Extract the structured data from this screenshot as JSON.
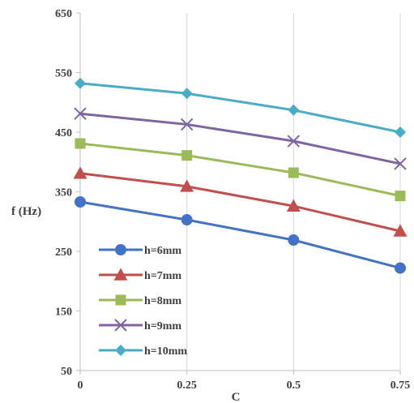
{
  "chart_data": {
    "type": "line",
    "title": "",
    "xlabel": "C",
    "ylabel": "f (Hz)",
    "x": [
      0,
      0.25,
      0.5,
      0.75
    ],
    "x_tick_labels": [
      "0",
      "0.25",
      "0.5",
      "0.75"
    ],
    "ylim": [
      50,
      650
    ],
    "y_ticks": [
      50,
      150,
      250,
      350,
      450,
      550,
      650
    ],
    "y_tick_labels": [
      "50",
      "150",
      "250",
      "350",
      "450",
      "550",
      "650"
    ],
    "grid": "vertical",
    "legend_position": "bottom-left",
    "series": [
      {
        "name": "h=6mm",
        "values": [
          333,
          303,
          269,
          222
        ],
        "marker": "circle",
        "color": "#4472C4"
      },
      {
        "name": "h=7mm",
        "values": [
          381,
          359,
          326,
          284
        ],
        "marker": "triangle",
        "color": "#C0504D"
      },
      {
        "name": "h=8mm",
        "values": [
          431,
          411,
          382,
          343
        ],
        "marker": "square",
        "color": "#9BBB59"
      },
      {
        "name": "h=9mm",
        "values": [
          481,
          463,
          435,
          397
        ],
        "marker": "x",
        "color": "#8064A2"
      },
      {
        "name": "h=10mm",
        "values": [
          532,
          515,
          487,
          450
        ],
        "marker": "diamond",
        "color": "#4BACC6"
      }
    ]
  }
}
